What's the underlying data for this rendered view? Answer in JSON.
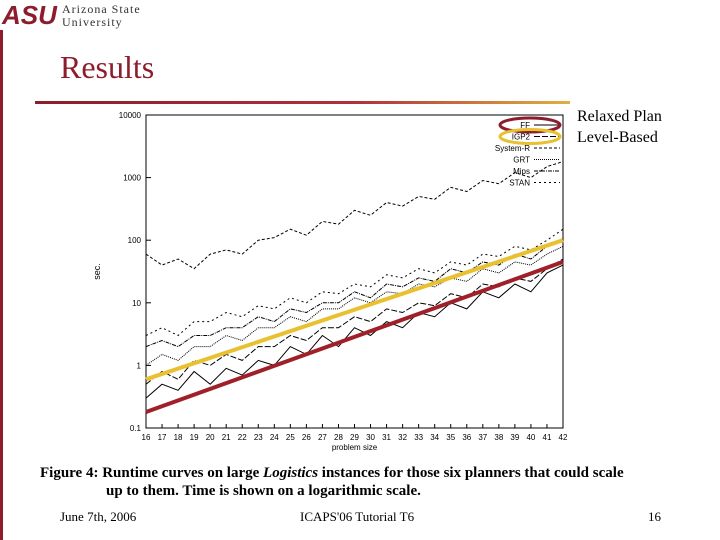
{
  "header": {
    "logo": "ASU",
    "university_line1": "Arizona State",
    "university_line2": "University",
    "title": "Results"
  },
  "chart_data": {
    "type": "line",
    "ylabel": "sec.",
    "xlabel": "problem size",
    "x": [
      16,
      17,
      18,
      19,
      20,
      21,
      22,
      23,
      24,
      25,
      26,
      27,
      28,
      29,
      30,
      31,
      32,
      33,
      34,
      35,
      36,
      37,
      38,
      39,
      40,
      41,
      42
    ],
    "xlim": [
      16,
      42
    ],
    "xticks": [
      16,
      17,
      18,
      19,
      20,
      21,
      22,
      23,
      24,
      25,
      26,
      27,
      28,
      29,
      30,
      31,
      32,
      33,
      34,
      35,
      36,
      37,
      38,
      39,
      40,
      41,
      42
    ],
    "ylim": [
      0.1,
      10000
    ],
    "yticks": [
      0.1,
      1,
      10,
      100,
      1000,
      10000
    ],
    "log_y": true,
    "legend": "top-right",
    "series": [
      {
        "name": "FF",
        "color": "#000000",
        "dash": "none",
        "values": [
          0.3,
          0.5,
          0.4,
          0.8,
          0.5,
          0.9,
          0.7,
          1.2,
          1,
          2,
          1.5,
          3,
          2,
          4,
          3,
          5,
          4,
          7,
          6,
          10,
          8,
          15,
          12,
          20,
          15,
          30,
          40
        ]
      },
      {
        "name": "IGP2",
        "color": "#000000",
        "dash": "6,2",
        "values": [
          0.5,
          0.8,
          0.6,
          1.2,
          1,
          1.5,
          1.2,
          2,
          2,
          3,
          2.5,
          4,
          4,
          6,
          5,
          8,
          7,
          10,
          9,
          14,
          12,
          20,
          18,
          25,
          22,
          35,
          50
        ]
      },
      {
        "name": "System-R",
        "color": "#000000",
        "dash": "3,2",
        "values": [
          60,
          40,
          50,
          35,
          60,
          70,
          60,
          100,
          110,
          150,
          120,
          200,
          180,
          300,
          250,
          400,
          350,
          500,
          450,
          700,
          600,
          900,
          800,
          1200,
          1000,
          1500,
          1800
        ]
      },
      {
        "name": "GRT",
        "color": "#000000",
        "dash": "1,1",
        "values": [
          1,
          1.5,
          1.2,
          2,
          2,
          3,
          2.5,
          4,
          4,
          6,
          5,
          8,
          8,
          12,
          10,
          15,
          14,
          20,
          18,
          25,
          22,
          35,
          30,
          45,
          40,
          60,
          80
        ]
      },
      {
        "name": "Mips",
        "color": "#000000",
        "dash": "4,1,1,1",
        "values": [
          2,
          2.5,
          2,
          3,
          3,
          4,
          4,
          6,
          5,
          8,
          7,
          10,
          10,
          15,
          12,
          20,
          18,
          25,
          22,
          35,
          30,
          45,
          40,
          60,
          50,
          80,
          100
        ]
      },
      {
        "name": "STAN",
        "color": "#000000",
        "dash": "2,3",
        "values": [
          3,
          4,
          3,
          5,
          5,
          7,
          6,
          9,
          8,
          12,
          10,
          15,
          14,
          20,
          18,
          28,
          25,
          35,
          30,
          45,
          40,
          60,
          55,
          80,
          70,
          100,
          150
        ]
      }
    ],
    "overlays": [
      {
        "label": "Relaxed Plan",
        "color": "#e8c030",
        "x": [
          16,
          42
        ],
        "values": [
          0.6,
          100
        ]
      },
      {
        "label": "Level-Based",
        "color": "#a0202a",
        "x": [
          16,
          42
        ],
        "values": [
          0.18,
          45
        ]
      }
    ]
  },
  "caption": [
    "Figure 4:  Runtime curves on large ",
    "Logistics",
    " instances for those six planners that could scale",
    "up to them.  Time is shown on a logarithmic scale."
  ],
  "footer": {
    "date": "June 7th, 2006",
    "event": "ICAPS'06 Tutorial T6",
    "page": "16"
  }
}
